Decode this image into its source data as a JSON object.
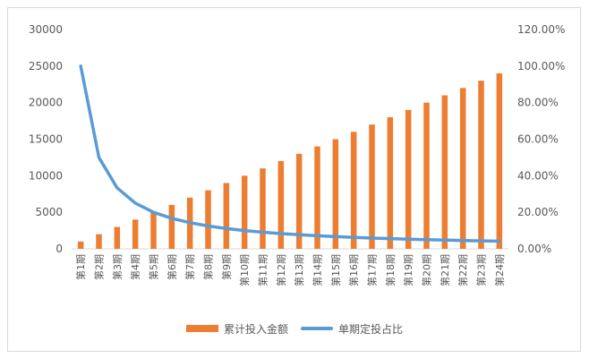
{
  "chart_data": {
    "type": "bar+line",
    "title": "",
    "xlabel": "",
    "ylabel": "",
    "categories": [
      "第1期",
      "第2期",
      "第3期",
      "第4期",
      "第5期",
      "第6期",
      "第7期",
      "第8期",
      "第9期",
      "第10期",
      "第11期",
      "第12期",
      "第13期",
      "第14期",
      "第15期",
      "第16期",
      "第17期",
      "第18期",
      "第19期",
      "第20期",
      "第21期",
      "第22期",
      "第23期",
      "第24期"
    ],
    "series": [
      {
        "name": "累计投入金额",
        "type": "bar",
        "axis": "left",
        "color": "#ed7d31",
        "values": [
          1000,
          2000,
          3000,
          4000,
          5000,
          6000,
          7000,
          8000,
          9000,
          10000,
          11000,
          12000,
          13000,
          14000,
          15000,
          16000,
          17000,
          18000,
          19000,
          20000,
          21000,
          22000,
          23000,
          24000
        ]
      },
      {
        "name": "单期定投占比",
        "type": "line",
        "axis": "right",
        "color": "#5b9bd5",
        "values": [
          1.0,
          0.5,
          0.3333,
          0.25,
          0.2,
          0.1667,
          0.1429,
          0.125,
          0.1111,
          0.1,
          0.0909,
          0.0833,
          0.0769,
          0.0714,
          0.0667,
          0.0625,
          0.0588,
          0.0556,
          0.0526,
          0.05,
          0.0476,
          0.0455,
          0.0435,
          0.0417
        ]
      }
    ],
    "ylim_left": [
      0,
      30000
    ],
    "yticks_left": [
      "0",
      "5000",
      "10000",
      "15000",
      "20000",
      "25000",
      "30000"
    ],
    "ylim_right": [
      0,
      1.2
    ],
    "yticks_right": [
      "0.00%",
      "20.00%",
      "40.00%",
      "60.00%",
      "80.00%",
      "100.00%",
      "120.00%"
    ],
    "grid": false,
    "legend_position": "bottom"
  }
}
